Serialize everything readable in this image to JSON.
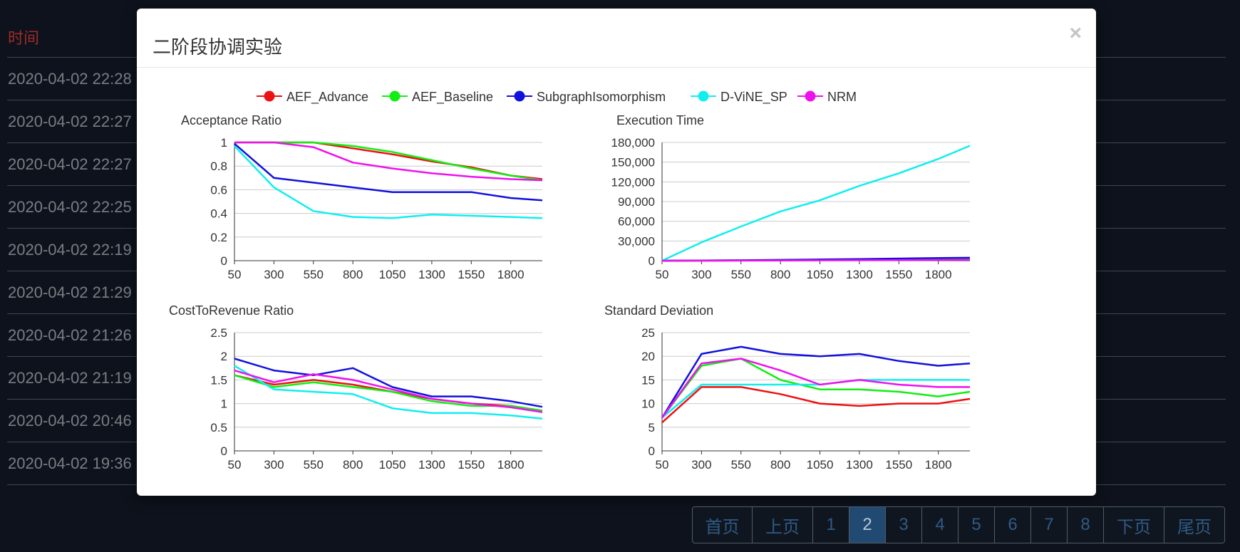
{
  "background": {
    "header_label": "时间",
    "rows": [
      "2020-04-02 22:28",
      "2020-04-02 22:27",
      "2020-04-02 22:27",
      "2020-04-02 22:25",
      "2020-04-02 22:19",
      "2020-04-02 21:29",
      "2020-04-02 21:26",
      "2020-04-02 21:19",
      "2020-04-02 20:46",
      "2020-04-02 19:36"
    ]
  },
  "modal": {
    "title": "二阶段协调实验",
    "close_label": "×"
  },
  "legend": {
    "items": [
      {
        "name": "AEF_Advance",
        "color": "#ee1111"
      },
      {
        "name": "AEF_Baseline",
        "color": "#11ee11"
      },
      {
        "name": "SubgraphIsomorphism",
        "color": "#1111dd"
      },
      {
        "name": "D-ViNE_SP",
        "color": "#11eeee"
      },
      {
        "name": "NRM",
        "color": "#ee11ee"
      }
    ]
  },
  "chart_data": [
    {
      "type": "line",
      "title": "Acceptance Ratio",
      "x": [
        50,
        300,
        550,
        800,
        1050,
        1300,
        1550,
        1800,
        2000
      ],
      "x_ticks": [
        "50",
        "300",
        "550",
        "800",
        "1050",
        "1300",
        "1550",
        "1800"
      ],
      "y_ticks": [
        "0",
        "0.2",
        "0.4",
        "0.6",
        "0.8",
        "1"
      ],
      "ylim": [
        0,
        1
      ],
      "xlim": [
        50,
        2000
      ],
      "series": [
        {
          "name": "AEF_Advance",
          "values": [
            1,
            1,
            1,
            0.95,
            0.9,
            0.84,
            0.79,
            0.72,
            0.69
          ]
        },
        {
          "name": "AEF_Baseline",
          "values": [
            1,
            1,
            1,
            0.97,
            0.92,
            0.85,
            0.78,
            0.72,
            0.68
          ]
        },
        {
          "name": "SubgraphIsomorphism",
          "values": [
            0.99,
            0.7,
            0.66,
            0.62,
            0.58,
            0.58,
            0.58,
            0.53,
            0.51
          ]
        },
        {
          "name": "D-ViNE_SP",
          "values": [
            0.97,
            0.62,
            0.42,
            0.37,
            0.36,
            0.39,
            0.38,
            0.37,
            0.36
          ]
        },
        {
          "name": "NRM",
          "values": [
            1,
            1,
            0.96,
            0.83,
            0.78,
            0.74,
            0.71,
            0.69,
            0.68
          ]
        }
      ]
    },
    {
      "type": "line",
      "title": "Execution Time",
      "x": [
        50,
        300,
        550,
        800,
        1050,
        1300,
        1550,
        1800,
        2000
      ],
      "x_ticks": [
        "50",
        "300",
        "550",
        "800",
        "1050",
        "1300",
        "1550",
        "1800"
      ],
      "y_ticks": [
        "0",
        "30,000",
        "60,000",
        "90,000",
        "120,000",
        "150,000",
        "180,000"
      ],
      "ylim": [
        0,
        180000
      ],
      "xlim": [
        50,
        2000
      ],
      "series": [
        {
          "name": "AEF_Advance",
          "values": [
            0,
            100,
            300,
            500,
            800,
            1200,
            1600,
            2000,
            2500
          ]
        },
        {
          "name": "AEF_Baseline",
          "values": [
            0,
            100,
            300,
            500,
            800,
            1200,
            1600,
            2000,
            2500
          ]
        },
        {
          "name": "SubgraphIsomorphism",
          "values": [
            0,
            300,
            700,
            1200,
            1800,
            2500,
            3300,
            4000,
            4500
          ]
        },
        {
          "name": "D-ViNE_SP",
          "values": [
            0,
            28000,
            52000,
            75000,
            92000,
            114000,
            133000,
            155000,
            175000
          ]
        },
        {
          "name": "NRM",
          "values": [
            0,
            50,
            150,
            300,
            500,
            700,
            900,
            1100,
            1300
          ]
        }
      ]
    },
    {
      "type": "line",
      "title": "CostToRevenue Ratio",
      "x": [
        50,
        300,
        550,
        800,
        1050,
        1300,
        1550,
        1800,
        2000
      ],
      "x_ticks": [
        "50",
        "300",
        "550",
        "800",
        "1050",
        "1300",
        "1550",
        "1800"
      ],
      "y_ticks": [
        "0",
        "0.5",
        "1",
        "1.5",
        "2",
        "2.5"
      ],
      "ylim": [
        0,
        2.5
      ],
      "xlim": [
        50,
        2000
      ],
      "series": [
        {
          "name": "AEF_Advance",
          "values": [
            1.6,
            1.4,
            1.5,
            1.4,
            1.25,
            1.1,
            1.0,
            0.95,
            0.85
          ]
        },
        {
          "name": "AEF_Baseline",
          "values": [
            1.6,
            1.35,
            1.45,
            1.35,
            1.25,
            1.05,
            0.95,
            0.95,
            0.85
          ]
        },
        {
          "name": "SubgraphIsomorphism",
          "values": [
            1.95,
            1.7,
            1.6,
            1.75,
            1.35,
            1.15,
            1.15,
            1.05,
            0.93
          ]
        },
        {
          "name": "D-ViNE_SP",
          "values": [
            1.8,
            1.3,
            1.25,
            1.2,
            0.9,
            0.8,
            0.8,
            0.75,
            0.68
          ]
        },
        {
          "name": "NRM",
          "values": [
            1.7,
            1.45,
            1.62,
            1.5,
            1.3,
            1.1,
            1.0,
            0.92,
            0.82
          ]
        }
      ]
    },
    {
      "type": "line",
      "title": "Standard Deviation",
      "x": [
        50,
        300,
        550,
        800,
        1050,
        1300,
        1550,
        1800,
        2000
      ],
      "x_ticks": [
        "50",
        "300",
        "550",
        "800",
        "1050",
        "1300",
        "1550",
        "1800"
      ],
      "y_ticks": [
        "0",
        "5",
        "10",
        "15",
        "20",
        "25"
      ],
      "ylim": [
        0,
        25
      ],
      "xlim": [
        50,
        2000
      ],
      "series": [
        {
          "name": "AEF_Advance",
          "values": [
            6,
            13.5,
            13.5,
            12,
            10,
            9.5,
            10,
            10,
            11
          ]
        },
        {
          "name": "AEF_Baseline",
          "values": [
            7,
            18,
            19.5,
            15,
            13,
            13,
            12.5,
            11.5,
            12.5
          ]
        },
        {
          "name": "SubgraphIsomorphism",
          "values": [
            7,
            20.5,
            22,
            20.5,
            20,
            20.5,
            19,
            18,
            18.5
          ]
        },
        {
          "name": "D-ViNE_SP",
          "values": [
            7,
            14,
            14,
            14,
            14,
            15,
            15,
            15,
            15
          ]
        },
        {
          "name": "NRM",
          "values": [
            7,
            18.5,
            19.5,
            17,
            14,
            15,
            14,
            13.5,
            13.5
          ]
        }
      ]
    }
  ],
  "pagination": {
    "first": "首页",
    "prev": "上页",
    "pages": [
      "1",
      "2",
      "3",
      "4",
      "5",
      "6",
      "7",
      "8"
    ],
    "active": "2",
    "next": "下页",
    "last": "尾页"
  }
}
